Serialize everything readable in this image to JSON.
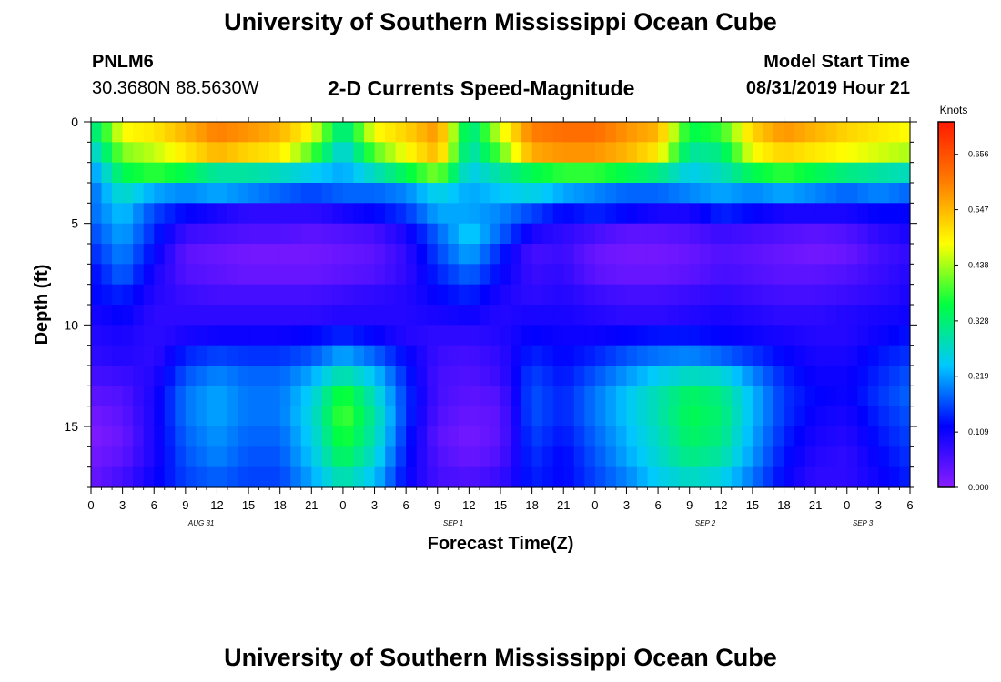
{
  "header": {
    "title": "University of Southern Mississippi Ocean Cube",
    "station_id": "PNLM6",
    "station_coords": "30.3680N 88.5630W",
    "plot_title": "2-D Currents Speed-Magnitude",
    "model_start_label": "Model Start Time",
    "model_start_time": "08/31/2019 Hour 21"
  },
  "footer": {
    "title": "University of Southern Mississippi Ocean Cube"
  },
  "chart_data": {
    "type": "heatmap",
    "title": "2-D Currents Speed-Magnitude",
    "xlabel": "Forecast Time(Z)",
    "ylabel": "Depth (ft)",
    "x_tick_labels": [
      "0",
      "3",
      "6",
      "9",
      "12",
      "15",
      "18",
      "21",
      "0",
      "3",
      "6",
      "9",
      "12",
      "15",
      "18",
      "21",
      "0",
      "3",
      "6",
      "9",
      "12",
      "15",
      "18",
      "21",
      "0",
      "3",
      "6"
    ],
    "date_labels": [
      {
        "text": "AUG 31",
        "hour_index": 10.5
      },
      {
        "text": "SEP 1",
        "hour_index": 34.5
      },
      {
        "text": "SEP 2",
        "hour_index": 58.5
      },
      {
        "text": "SEP 3",
        "hour_index": 73.5
      }
    ],
    "xlim_hours": [
      0,
      78
    ],
    "ylim_ft": [
      0,
      18
    ],
    "y_ticks": [
      0,
      5,
      10,
      15
    ],
    "colorbar": {
      "label": "Knots",
      "tick_values": [
        0.656,
        0.547,
        0.438,
        0.328,
        0.219,
        0.109,
        0.0
      ],
      "tick_labels": [
        "0.656",
        "0.547",
        "0.438",
        "0.328",
        "0.219",
        "0.109",
        "0.000"
      ],
      "range": [
        0.0,
        0.72
      ]
    },
    "colors": {
      "stops": [
        "#8a1cff",
        "#0000ff",
        "#00c8ff",
        "#00ff40",
        "#ffff00",
        "#ff7f00",
        "#ff1a00"
      ]
    },
    "depth_levels_ft": [
      0.5,
      1.5,
      2.5,
      3.5,
      4.5,
      5.5,
      6.5,
      7.5,
      8.5,
      9.5,
      10.5,
      11.5,
      12.5,
      13.5,
      14.5,
      15.5,
      16.5,
      17.5
    ],
    "time_keypoints_hours": [
      0,
      3,
      6,
      9,
      12,
      15,
      18,
      21,
      24,
      27,
      30,
      33,
      36,
      39,
      42,
      45,
      48,
      51,
      54,
      57,
      60,
      63,
      66,
      69,
      72,
      75,
      78
    ],
    "speed_knots": [
      [
        0.3,
        0.48,
        0.5,
        0.55,
        0.6,
        0.58,
        0.55,
        0.48,
        0.3,
        0.48,
        0.52,
        0.58,
        0.3,
        0.46,
        0.6,
        0.62,
        0.62,
        0.58,
        0.55,
        0.35,
        0.38,
        0.52,
        0.58,
        0.55,
        0.52,
        0.5,
        0.48
      ],
      [
        0.25,
        0.42,
        0.45,
        0.5,
        0.55,
        0.52,
        0.5,
        0.4,
        0.25,
        0.4,
        0.48,
        0.55,
        0.28,
        0.4,
        0.56,
        0.58,
        0.58,
        0.55,
        0.5,
        0.3,
        0.32,
        0.48,
        0.52,
        0.5,
        0.48,
        0.46,
        0.44
      ],
      [
        0.2,
        0.35,
        0.38,
        0.35,
        0.3,
        0.3,
        0.28,
        0.25,
        0.22,
        0.28,
        0.35,
        0.42,
        0.25,
        0.3,
        0.35,
        0.38,
        0.38,
        0.35,
        0.32,
        0.25,
        0.28,
        0.35,
        0.38,
        0.35,
        0.32,
        0.3,
        0.28
      ],
      [
        0.18,
        0.28,
        0.22,
        0.2,
        0.22,
        0.2,
        0.18,
        0.16,
        0.18,
        0.18,
        0.2,
        0.26,
        0.22,
        0.24,
        0.26,
        0.22,
        0.2,
        0.18,
        0.18,
        0.2,
        0.22,
        0.2,
        0.22,
        0.2,
        0.18,
        0.2,
        0.18
      ],
      [
        0.18,
        0.24,
        0.16,
        0.12,
        0.1,
        0.08,
        0.08,
        0.08,
        0.1,
        0.12,
        0.15,
        0.22,
        0.22,
        0.2,
        0.16,
        0.12,
        0.14,
        0.12,
        0.1,
        0.1,
        0.14,
        0.12,
        0.1,
        0.1,
        0.1,
        0.12,
        0.12
      ],
      [
        0.16,
        0.22,
        0.14,
        0.07,
        0.06,
        0.05,
        0.05,
        0.04,
        0.05,
        0.06,
        0.1,
        0.18,
        0.25,
        0.18,
        0.1,
        0.08,
        0.06,
        0.04,
        0.04,
        0.05,
        0.07,
        0.06,
        0.05,
        0.04,
        0.05,
        0.08,
        0.1
      ],
      [
        0.14,
        0.2,
        0.12,
        0.04,
        0.03,
        0.02,
        0.02,
        0.02,
        0.03,
        0.04,
        0.08,
        0.16,
        0.22,
        0.14,
        0.06,
        0.07,
        0.03,
        0.02,
        0.02,
        0.03,
        0.05,
        0.04,
        0.03,
        0.02,
        0.03,
        0.06,
        0.08
      ],
      [
        0.12,
        0.18,
        0.1,
        0.05,
        0.04,
        0.03,
        0.03,
        0.03,
        0.04,
        0.05,
        0.08,
        0.14,
        0.18,
        0.12,
        0.07,
        0.08,
        0.04,
        0.03,
        0.03,
        0.04,
        0.06,
        0.05,
        0.04,
        0.04,
        0.05,
        0.07,
        0.09
      ],
      [
        0.12,
        0.14,
        0.09,
        0.07,
        0.06,
        0.06,
        0.06,
        0.06,
        0.07,
        0.08,
        0.09,
        0.12,
        0.14,
        0.1,
        0.08,
        0.09,
        0.07,
        0.06,
        0.06,
        0.07,
        0.08,
        0.07,
        0.06,
        0.06,
        0.07,
        0.08,
        0.1
      ],
      [
        0.1,
        0.12,
        0.08,
        0.08,
        0.08,
        0.08,
        0.08,
        0.08,
        0.09,
        0.09,
        0.09,
        0.1,
        0.11,
        0.09,
        0.1,
        0.1,
        0.09,
        0.08,
        0.08,
        0.09,
        0.1,
        0.09,
        0.08,
        0.08,
        0.09,
        0.1,
        0.11
      ],
      [
        0.09,
        0.1,
        0.08,
        0.1,
        0.11,
        0.11,
        0.11,
        0.12,
        0.14,
        0.12,
        0.09,
        0.08,
        0.08,
        0.09,
        0.12,
        0.11,
        0.11,
        0.12,
        0.13,
        0.13,
        0.12,
        0.11,
        0.1,
        0.09,
        0.09,
        0.11,
        0.13
      ],
      [
        0.08,
        0.09,
        0.08,
        0.14,
        0.16,
        0.15,
        0.15,
        0.17,
        0.22,
        0.18,
        0.12,
        0.07,
        0.06,
        0.08,
        0.14,
        0.12,
        0.14,
        0.17,
        0.19,
        0.2,
        0.18,
        0.15,
        0.12,
        0.1,
        0.1,
        0.13,
        0.15
      ],
      [
        0.06,
        0.07,
        0.09,
        0.17,
        0.2,
        0.18,
        0.18,
        0.22,
        0.3,
        0.24,
        0.14,
        0.06,
        0.05,
        0.07,
        0.16,
        0.13,
        0.17,
        0.21,
        0.25,
        0.28,
        0.27,
        0.2,
        0.14,
        0.11,
        0.11,
        0.14,
        0.17
      ],
      [
        0.04,
        0.05,
        0.1,
        0.19,
        0.22,
        0.19,
        0.19,
        0.25,
        0.38,
        0.28,
        0.15,
        0.06,
        0.04,
        0.05,
        0.17,
        0.14,
        0.19,
        0.24,
        0.29,
        0.34,
        0.32,
        0.23,
        0.15,
        0.12,
        0.11,
        0.15,
        0.18
      ],
      [
        0.02,
        0.04,
        0.1,
        0.19,
        0.22,
        0.19,
        0.19,
        0.26,
        0.4,
        0.3,
        0.15,
        0.05,
        0.03,
        0.04,
        0.17,
        0.14,
        0.19,
        0.24,
        0.29,
        0.35,
        0.33,
        0.23,
        0.15,
        0.11,
        0.1,
        0.14,
        0.17
      ],
      [
        0.01,
        0.03,
        0.1,
        0.18,
        0.21,
        0.18,
        0.18,
        0.25,
        0.38,
        0.29,
        0.14,
        0.04,
        0.02,
        0.04,
        0.16,
        0.13,
        0.18,
        0.23,
        0.28,
        0.34,
        0.32,
        0.22,
        0.14,
        0.1,
        0.09,
        0.13,
        0.16
      ],
      [
        0.02,
        0.04,
        0.1,
        0.17,
        0.2,
        0.17,
        0.17,
        0.24,
        0.35,
        0.27,
        0.13,
        0.05,
        0.03,
        0.05,
        0.15,
        0.12,
        0.17,
        0.22,
        0.27,
        0.32,
        0.3,
        0.21,
        0.13,
        0.09,
        0.08,
        0.12,
        0.15
      ],
      [
        0.03,
        0.06,
        0.11,
        0.16,
        0.18,
        0.16,
        0.16,
        0.22,
        0.3,
        0.24,
        0.12,
        0.06,
        0.05,
        0.07,
        0.14,
        0.12,
        0.16,
        0.2,
        0.25,
        0.28,
        0.26,
        0.19,
        0.12,
        0.08,
        0.08,
        0.11,
        0.14
      ]
    ]
  }
}
